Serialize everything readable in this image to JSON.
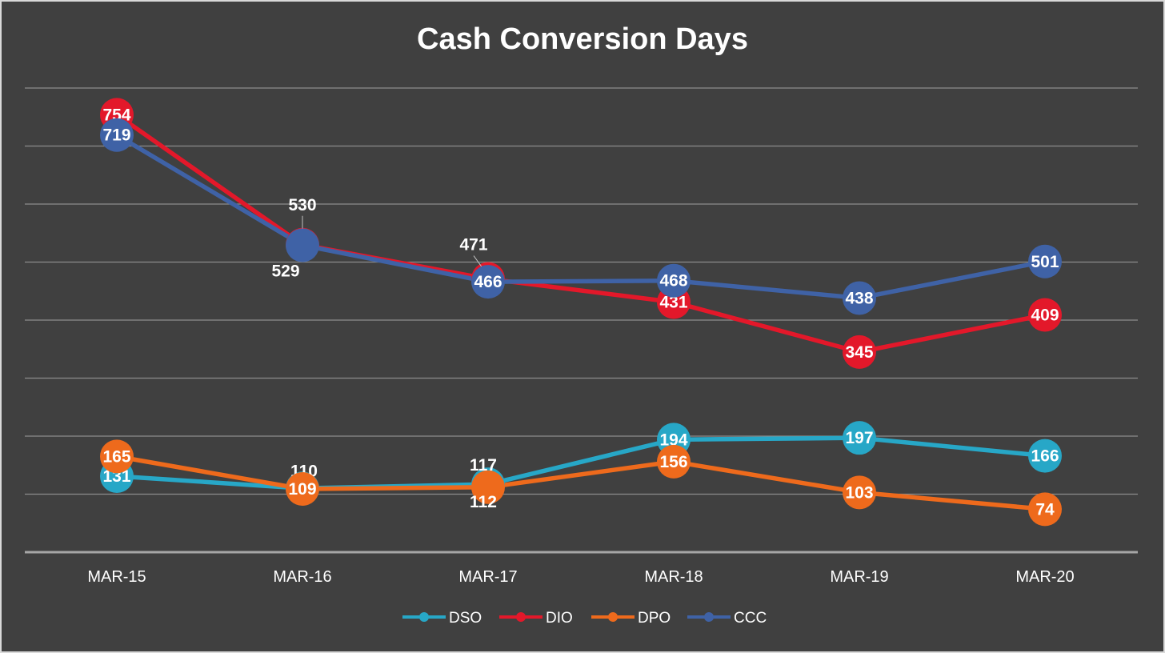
{
  "chart_data": {
    "type": "line",
    "title": "Cash Conversion Days",
    "categories": [
      "MAR-15",
      "MAR-16",
      "MAR-17",
      "MAR-18",
      "MAR-19",
      "MAR-20"
    ],
    "ylim": [
      0,
      800
    ],
    "grid": true,
    "legend_position": "bottom",
    "series": [
      {
        "name": "DSO",
        "color": "#27a7c7",
        "values": [
          131,
          110,
          117,
          194,
          197,
          166
        ]
      },
      {
        "name": "DIO",
        "color": "#e3182a",
        "values": [
          754,
          530,
          471,
          431,
          345,
          409
        ]
      },
      {
        "name": "DPO",
        "color": "#ee6a1c",
        "values": [
          165,
          109,
          112,
          156,
          103,
          74
        ]
      },
      {
        "name": "CCC",
        "color": "#3f62a6",
        "values": [
          719,
          529,
          466,
          468,
          438,
          501
        ]
      }
    ]
  }
}
